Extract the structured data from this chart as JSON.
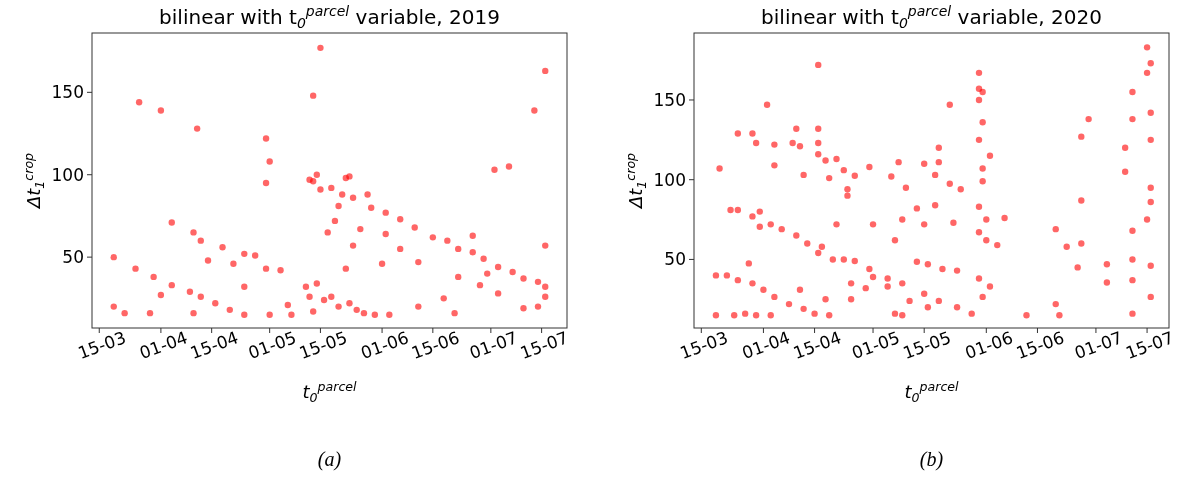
{
  "chart_data": [
    {
      "type": "scatter",
      "title": "bilinear with t$_{0}$$^{parcel}$ variable, 2019",
      "xlabel": "t$_{0}$$^{parcel}$",
      "ylabel": "Δt$_{1}$$^{crop}$",
      "marker": "circle",
      "annotations": [
        "(a)"
      ],
      "xlim": [
        "--03-13",
        "--07-22"
      ],
      "ylim": [
        7,
        186
      ],
      "yticks": [
        50,
        100,
        150
      ],
      "xticks": [
        {
          "value": "--03-15",
          "label": "15-03"
        },
        {
          "value": "--04-01",
          "label": "01-04"
        },
        {
          "value": "--04-15",
          "label": "15-04"
        },
        {
          "value": "--05-01",
          "label": "01-05"
        },
        {
          "value": "--05-15",
          "label": "15-05"
        },
        {
          "value": "--06-01",
          "label": "01-06"
        },
        {
          "value": "--06-15",
          "label": "15-06"
        },
        {
          "value": "--07-01",
          "label": "01-07"
        },
        {
          "value": "--07-15",
          "label": "15-07"
        }
      ],
      "series": [
        {
          "color": "#ff0000",
          "x": [
            "--05-15",
            "--05-13",
            "--03-26",
            "--04-01",
            "--04-11",
            "--04-30",
            "--05-01",
            "--04-30",
            "--07-16",
            "--07-13",
            "--07-02",
            "--07-06",
            "--07-16",
            "--05-12",
            "--05-14",
            "--05-13",
            "--05-15",
            "--05-18",
            "--05-22",
            "--05-23",
            "--05-21",
            "--05-24",
            "--05-28",
            "--05-20",
            "--05-29",
            "--06-02",
            "--06-06",
            "--06-10",
            "--06-15",
            "--06-19",
            "--06-22",
            "--06-26",
            "--06-29",
            "--07-03",
            "--07-07",
            "--07-10",
            "--07-14",
            "--07-16",
            "--07-16",
            "--06-26",
            "--05-19",
            "--05-17",
            "--05-26",
            "--05-24",
            "--06-01",
            "--06-22",
            "--07-03",
            "--06-18",
            "--06-21",
            "--07-10",
            "--06-11",
            "--05-22",
            "--05-11",
            "--05-12",
            "--05-14",
            "--05-16",
            "--05-18",
            "--05-20",
            "--05-23",
            "--05-25",
            "--05-27",
            "--05-30",
            "--05-13",
            "--06-03",
            "--03-25",
            "--03-30",
            "--04-04",
            "--04-09",
            "--04-12",
            "--04-16",
            "--04-20",
            "--04-24",
            "--04-10",
            "--03-19",
            "--03-19",
            "--03-22",
            "--04-04",
            "--04-10",
            "--04-12",
            "--04-18",
            "--04-24",
            "--04-14",
            "--04-21",
            "--04-27",
            "--04-30",
            "--05-04",
            "--04-24",
            "--04-01",
            "--03-29",
            "--05-06",
            "--05-01",
            "--05-07",
            "--06-02",
            "--06-06",
            "--06-11",
            "--06-30",
            "--06-28",
            "--07-14"
          ],
          "values": [
            177,
            148,
            144,
            139,
            128,
            122,
            108,
            95,
            163,
            139,
            103,
            105,
            57,
            97,
            100,
            96,
            91,
            92,
            98,
            99,
            88,
            86,
            88,
            81,
            80,
            77,
            73,
            68,
            62,
            60,
            55,
            53,
            49,
            44,
            41,
            37,
            35,
            32,
            26,
            63,
            72,
            65,
            67,
            57,
            46,
            38,
            28,
            25,
            16,
            19,
            20,
            43,
            32,
            26,
            34,
            24,
            26,
            20,
            22,
            18,
            16,
            15,
            17,
            15,
            43,
            38,
            33,
            29,
            26,
            22,
            18,
            15,
            16,
            50,
            20,
            16,
            71,
            65,
            60,
            56,
            52,
            48,
            46,
            51,
            43,
            42,
            32,
            27,
            16,
            21,
            15,
            15,
            64,
            55,
            47,
            40,
            33,
            20
          ]
        }
      ]
    },
    {
      "type": "scatter",
      "title": "bilinear with t$_{0}$$^{parcel}$ variable, 2020",
      "xlabel": "t$_{0}$$^{parcel}$",
      "ylabel": "Δt$_{1}$$^{crop}$",
      "marker": "circle",
      "annotations": [
        "(b)"
      ],
      "xlim": [
        "--03-13",
        "--07-21"
      ],
      "ylim": [
        7,
        192
      ],
      "yticks": [
        50,
        100,
        150
      ],
      "xticks": [
        {
          "value": "--03-15",
          "label": "15-03"
        },
        {
          "value": "--04-01",
          "label": "01-04"
        },
        {
          "value": "--04-15",
          "label": "15-04"
        },
        {
          "value": "--05-01",
          "label": "01-05"
        },
        {
          "value": "--05-15",
          "label": "15-05"
        },
        {
          "value": "--06-01",
          "label": "01-06"
        },
        {
          "value": "--06-15",
          "label": "15-06"
        },
        {
          "value": "--07-01",
          "label": "01-07"
        },
        {
          "value": "--07-15",
          "label": "15-07"
        }
      ],
      "series": [
        {
          "color": "#ff0000",
          "x": [
            "--07-15",
            "--07-16",
            "--07-15",
            "--07-11",
            "--07-16",
            "--07-11",
            "--07-16",
            "--07-09",
            "--07-09",
            "--07-16",
            "--07-16",
            "--07-15",
            "--07-11",
            "--07-11",
            "--07-16",
            "--07-11",
            "--07-16",
            "--07-11",
            "--06-29",
            "--06-27",
            "--06-27",
            "--06-27",
            "--06-20",
            "--06-23",
            "--06-26",
            "--07-04",
            "--07-04",
            "--06-20",
            "--06-21",
            "--06-12",
            "--05-30",
            "--05-30",
            "--05-31",
            "--05-30",
            "--05-31",
            "--05-30",
            "--05-31",
            "--05-31",
            "--05-30",
            "--06-01",
            "--05-30",
            "--06-01",
            "--06-04",
            "--06-02",
            "--06-06",
            "--05-30",
            "--05-31",
            "--06-02",
            "--05-22",
            "--05-19",
            "--05-19",
            "--05-15",
            "--05-18",
            "--05-22",
            "--05-25",
            "--05-18",
            "--05-08",
            "--05-06",
            "--05-10",
            "--05-13",
            "--05-15",
            "--05-09",
            "--05-07",
            "--05-13",
            "--05-16",
            "--05-20",
            "--05-24",
            "--05-23",
            "--05-05",
            "--05-09",
            "--05-15",
            "--05-19",
            "--05-24",
            "--05-28",
            "--05-05",
            "--05-11",
            "--05-16",
            "--05-07",
            "--05-09",
            "--04-16",
            "--04-02",
            "--03-25",
            "--03-29",
            "--03-30",
            "--04-10",
            "--04-16",
            "--04-04",
            "--04-09",
            "--04-11",
            "--04-16",
            "--04-16",
            "--04-04",
            "--04-18",
            "--04-21",
            "--04-23",
            "--04-26",
            "--04-19",
            "--04-12",
            "--03-20",
            "--04-30",
            "--04-24",
            "--04-24",
            "--03-23",
            "--03-25",
            "--03-29",
            "--03-31",
            "--03-31",
            "--04-03",
            "--04-06",
            "--04-10",
            "--04-13",
            "--04-17",
            "--04-16",
            "--04-20",
            "--04-23",
            "--04-26",
            "--04-30",
            "--05-01",
            "--04-21",
            "--05-01",
            "--04-25",
            "--04-29",
            "--03-19",
            "--03-22",
            "--03-25",
            "--03-29",
            "--04-01",
            "--04-04",
            "--04-08",
            "--04-12",
            "--04-15",
            "--04-19",
            "--03-19",
            "--03-24",
            "--03-28",
            "--04-11",
            "--04-18",
            "--04-25",
            "--04-03",
            "--03-30",
            "--03-27"
          ],
          "values": [
            183,
            173,
            167,
            155,
            142,
            138,
            125,
            120,
            105,
            95,
            86,
            75,
            68,
            50,
            46,
            37,
            26.5,
            16,
            138,
            127,
            87,
            60,
            69,
            58,
            45,
            47,
            35.5,
            22,
            15,
            15,
            167,
            157,
            155,
            150,
            136,
            125,
            107,
            99,
            83,
            75,
            67,
            62,
            59,
            115,
            76,
            38,
            26.5,
            33,
            147,
            120,
            111,
            110,
            103,
            97.5,
            94,
            84,
            111,
            102,
            95,
            82,
            72,
            75,
            62,
            48.5,
            47,
            44,
            43,
            73,
            38,
            35,
            28.5,
            24,
            20,
            16,
            33,
            24,
            20,
            16,
            15,
            172,
            147,
            129,
            129,
            123,
            132,
            132,
            122,
            123,
            121,
            123,
            116,
            109,
            112,
            113,
            106,
            102.5,
            101,
            103,
            107,
            108,
            94,
            90,
            81,
            81,
            77,
            80,
            70.5,
            72,
            69,
            65,
            60,
            58,
            54,
            50,
            50,
            49,
            44,
            39,
            72,
            72,
            35,
            32,
            40,
            40,
            37,
            35,
            31,
            26.5,
            22,
            19,
            16,
            15,
            15,
            15,
            47.5,
            31,
            25,
            25,
            15,
            15,
            16
          ]
        }
      ]
    }
  ]
}
